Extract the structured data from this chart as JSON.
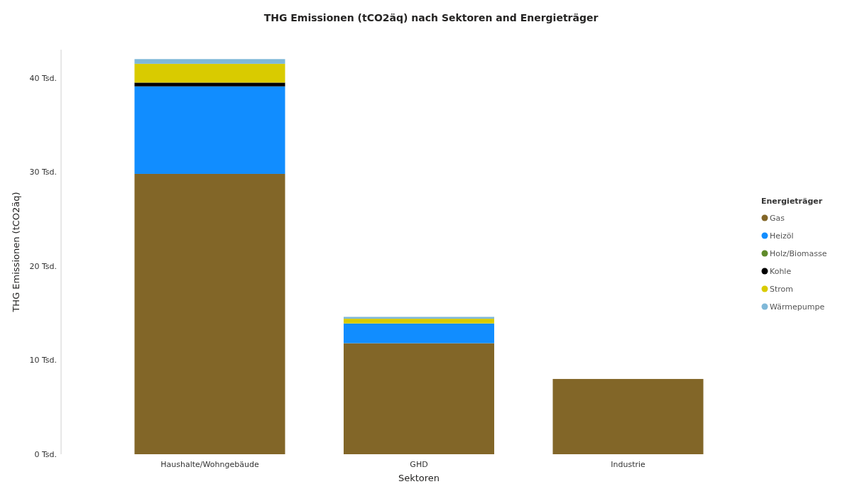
{
  "chart_data": {
    "type": "bar",
    "title": "THG Emissionen (tCO2äq) nach Sektoren and Energieträger",
    "xlabel": "Sektoren",
    "ylabel": "THG Emissionen (tCO2äq)",
    "legend_title": "Energieträger",
    "categories": [
      "Haushalte/Wohngebäude",
      "GHD",
      "Industrie"
    ],
    "stacked": true,
    "legend": "right",
    "grid": false,
    "series": [
      {
        "name": "Gas",
        "color": "#826628",
        "values": [
          29.8,
          11.8,
          8.0
        ]
      },
      {
        "name": "Heizöl",
        "color": "#118dff",
        "values": [
          9.3,
          2.1,
          0
        ]
      },
      {
        "name": "Holz/Biomasse",
        "color": "#5f8a2a",
        "values": [
          0,
          0,
          0
        ]
      },
      {
        "name": "Kohle",
        "color": "#000000",
        "values": [
          0.4,
          0,
          0
        ]
      },
      {
        "name": "Strom",
        "color": "#d9cb00",
        "values": [
          2.0,
          0.5,
          0
        ]
      },
      {
        "name": "Wärmepumpe",
        "color": "#7fb8d8",
        "values": [
          0.5,
          0.2,
          0
        ]
      }
    ],
    "ylim": [
      0,
      43
    ],
    "yticks": [
      {
        "value": 0,
        "label": "0 Tsd."
      },
      {
        "value": 10,
        "label": "10 Tsd."
      },
      {
        "value": 20,
        "label": "20 Tsd."
      },
      {
        "value": 30,
        "label": "30 Tsd."
      },
      {
        "value": 40,
        "label": "40 Tsd."
      }
    ]
  }
}
